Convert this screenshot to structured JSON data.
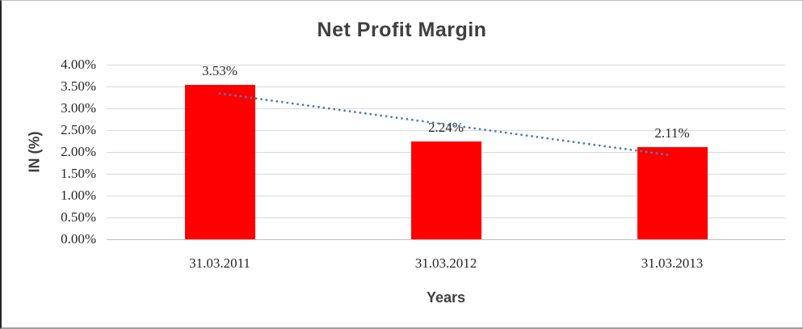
{
  "chart_data": {
    "type": "bar",
    "title": "Net Profit Margin",
    "xlabel": "Years",
    "ylabel": "IN (%)",
    "categories": [
      "31.03.2011",
      "31.03.2012",
      "31.03.2013"
    ],
    "values": [
      3.53,
      2.24,
      2.11
    ],
    "data_labels": [
      "3.53%",
      "2.24%",
      "2.11%"
    ],
    "y_ticks": [
      "4.00%",
      "3.50%",
      "3.00%",
      "2.50%",
      "2.00%",
      "1.50%",
      "1.00%",
      "0.50%",
      "0.00%"
    ],
    "ylim": [
      0,
      4
    ],
    "y_step": 0.5,
    "grid": true,
    "legend": "none",
    "bar_color": "#ff0000",
    "gridline_color": "#d9d9d9",
    "axis_line_color": "#bfbfbf",
    "text_color": "#262626",
    "title_color": "#3f3f3f",
    "trendline": {
      "shape": "linear",
      "style": "dotted",
      "color": "#4a7ebb",
      "start_value_pct": 3.34,
      "end_value_pct": 1.92
    }
  }
}
